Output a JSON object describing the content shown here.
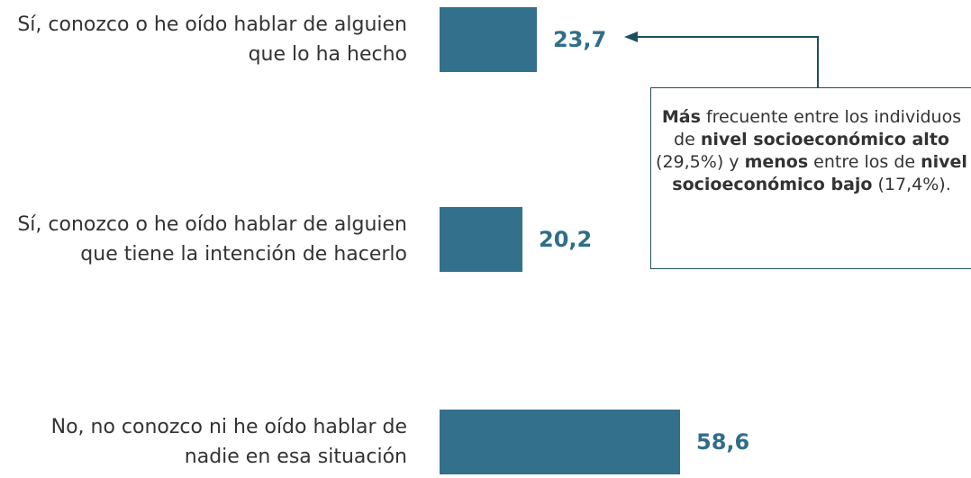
{
  "chart_data": {
    "type": "bar",
    "orientation": "horizontal",
    "categories": [
      "Sí, conozco o he oído hablar de alguien que lo ha hecho",
      "Sí, conozco o he oído hablar de alguien que tiene la intención de hacerlo",
      "No, no conozco ni he oído hablar de nadie en esa situación"
    ],
    "values": [
      23.7,
      20.2,
      58.6
    ],
    "value_labels": [
      "23,7",
      "20,2",
      "58,6"
    ],
    "color": "#33708c",
    "label_color": "#2e6e8b",
    "annotation": [
      {
        "text": "Más",
        "bold": true
      },
      {
        "text": " frecuente entre los individuos de ",
        "bold": false
      },
      {
        "text": "nivel socioeconómico alto",
        "bold": true
      },
      {
        "text": " (29,5%) y ",
        "bold": false
      },
      {
        "text": "menos",
        "bold": true
      },
      {
        "text": " entre los de ",
        "bold": false
      },
      {
        "text": "nivel socioeconómico bajo",
        "bold": true
      },
      {
        "text": " (17,4%).",
        "bold": false
      }
    ]
  }
}
